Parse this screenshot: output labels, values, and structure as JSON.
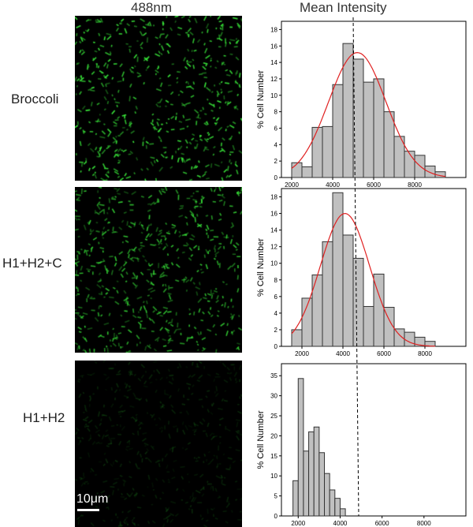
{
  "headers": {
    "col1": "488nm",
    "col2": "Mean Intensity"
  },
  "rows": [
    {
      "label": "Broccoli",
      "brightness": 1.0,
      "density": 1.0
    },
    {
      "label": "H1+H2+C",
      "brightness": 0.85,
      "density": 1.05
    },
    {
      "label": "H1+H2",
      "brightness": 0.18,
      "density": 0.9
    }
  ],
  "scale_bar": {
    "text": "10μm"
  },
  "colors": {
    "bar_fill": "#c0c0c0",
    "bar_stroke": "#333333",
    "fit_line": "#e02020",
    "signal": "#39e83a"
  },
  "chart_data": [
    {
      "type": "bar",
      "ylabel": "% Cell Number",
      "xlim": [
        1500,
        10500
      ],
      "ylim": [
        0,
        19
      ],
      "xticks": [
        2000,
        4000,
        6000,
        8000
      ],
      "yticks": [
        0,
        2,
        4,
        6,
        8,
        10,
        12,
        14,
        16,
        18
      ],
      "bin_width": 500,
      "bins": [
        2000,
        2500,
        3000,
        3500,
        4000,
        4500,
        5000,
        5500,
        6000,
        6500,
        7000,
        7500,
        8000,
        8500,
        9000
      ],
      "values": [
        1.8,
        1.3,
        6.1,
        6.2,
        11.3,
        16.3,
        14.4,
        11.6,
        12.0,
        8.0,
        5.0,
        3.2,
        2.7,
        1.4,
        0.7
      ],
      "fit": {
        "type": "gaussian",
        "mean": 5200,
        "sd": 1400,
        "peak": 15.2
      },
      "reference_line_x": 5000
    },
    {
      "type": "bar",
      "ylabel": "% Cell Number",
      "xlim": [
        1000,
        10000
      ],
      "ylim": [
        0,
        19
      ],
      "xticks": [
        2000,
        4000,
        6000,
        8000
      ],
      "yticks": [
        0,
        2,
        4,
        6,
        8,
        10,
        12,
        14,
        16,
        18
      ],
      "bin_width": 500,
      "bins": [
        1500,
        2000,
        2500,
        3000,
        3500,
        4000,
        4500,
        5000,
        5500,
        6000,
        6500,
        7000,
        7500,
        8000
      ],
      "values": [
        2.0,
        5.8,
        8.6,
        12.6,
        18.5,
        13.4,
        10.6,
        4.8,
        8.7,
        4.7,
        2.1,
        1.7,
        1.1,
        0.6
      ],
      "fit": {
        "type": "gaussian",
        "mean": 4100,
        "sd": 1200,
        "peak": 16.0
      },
      "reference_line_x": 5000
    },
    {
      "type": "bar",
      "ylabel": "% Cell Number",
      "xlim": [
        1200,
        10000
      ],
      "ylim": [
        0,
        38
      ],
      "xticks": [
        2000,
        4000,
        6000,
        8000
      ],
      "yticks": [
        0,
        5,
        10,
        15,
        20,
        25,
        30,
        35
      ],
      "bin_width": 250,
      "bins": [
        1750,
        2000,
        2250,
        2500,
        2750,
        3000,
        3250,
        3500,
        3750,
        4000
      ],
      "values": [
        8.8,
        34.3,
        16.2,
        21.0,
        22.2,
        15.8,
        10.6,
        6.5,
        4.4,
        1.8
      ],
      "reference_line_x": 5000
    }
  ]
}
